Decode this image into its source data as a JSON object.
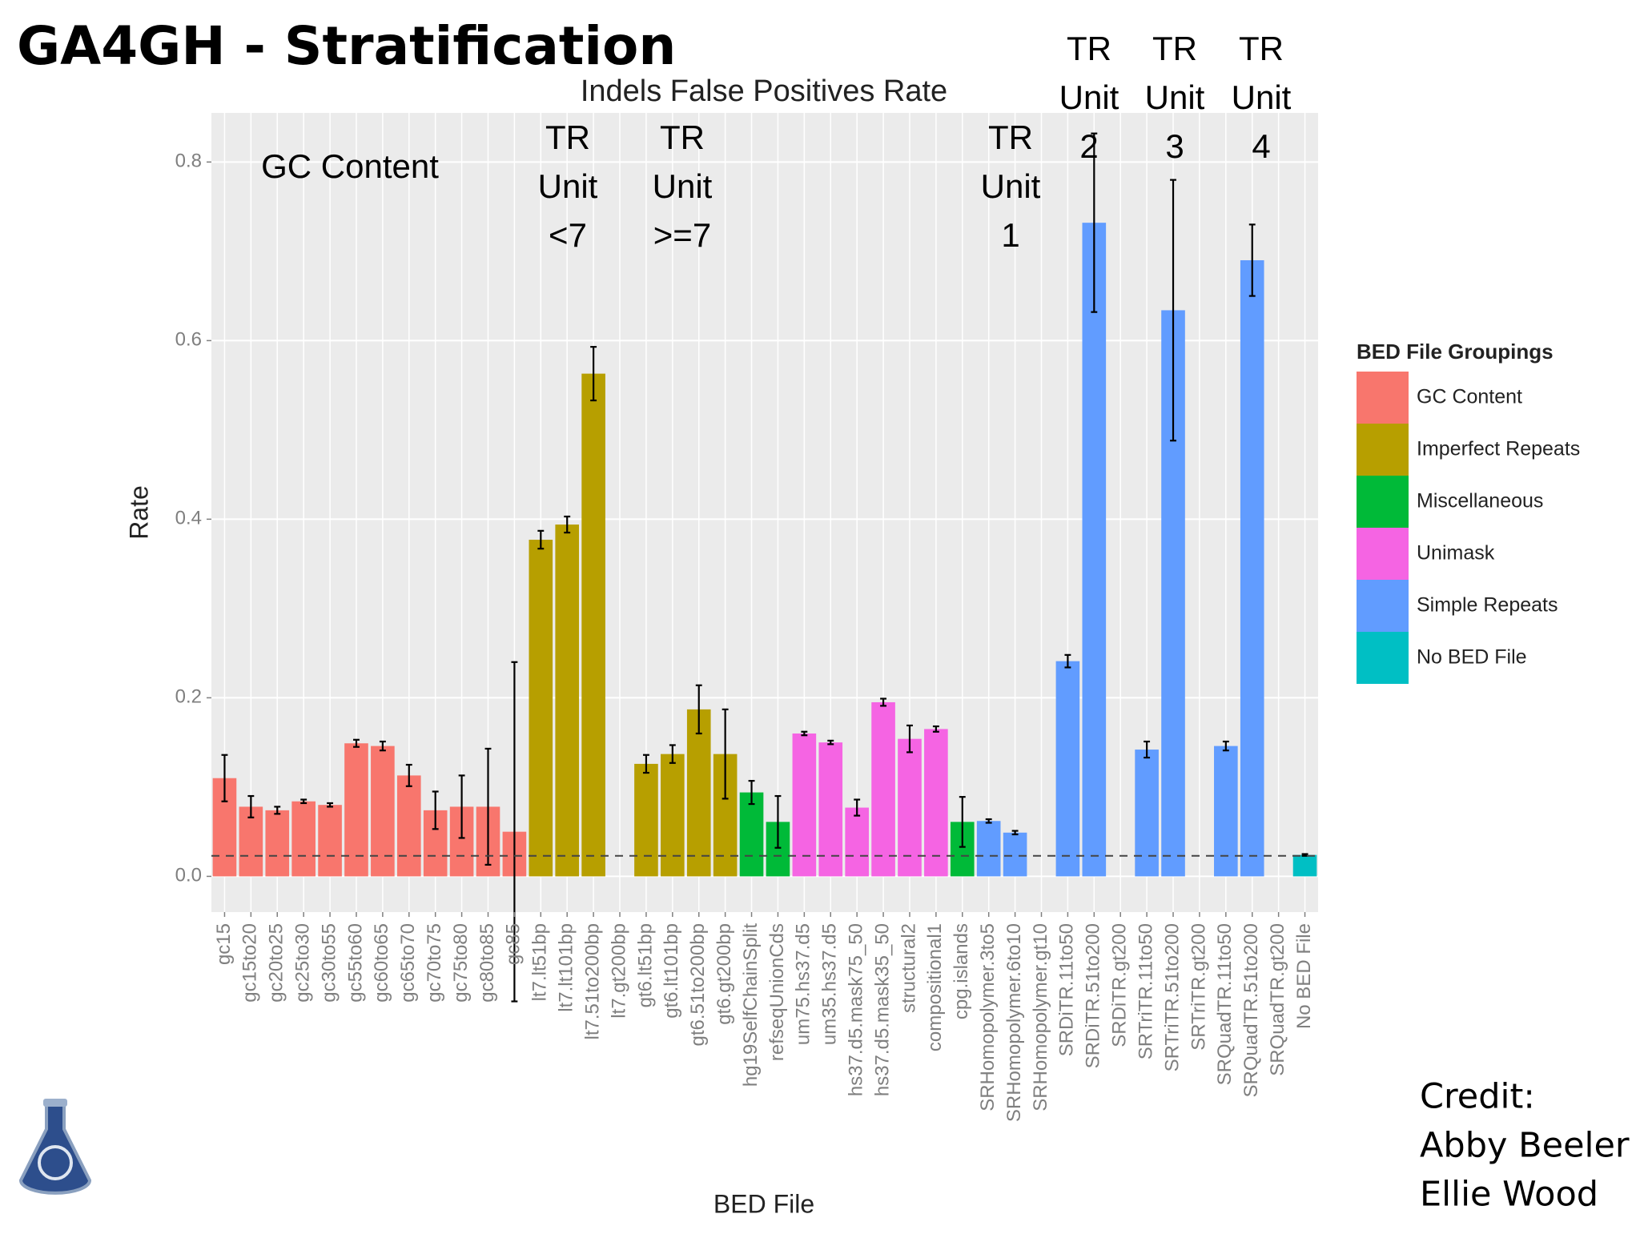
{
  "slide": {
    "title": "GA4GH - Stratification",
    "credit": [
      "Credit:",
      "Abby Beeler",
      "Ellie Wood"
    ]
  },
  "chart_data": {
    "type": "bar",
    "title": "Indels False Positives Rate",
    "x_label": "BED File",
    "y_label": "Rate",
    "categories": [
      "gc15",
      "gc15to20",
      "gc20to25",
      "gc25to30",
      "gc30to55",
      "gc55to60",
      "gc60to65",
      "gc65to70",
      "gc70to75",
      "gc75to80",
      "gc80to85",
      "gc85",
      "lt7.lt51bp",
      "lt7.lt101bp",
      "lt7.51to200bp",
      "lt7.gt200bp",
      "gt6.lt51bp",
      "gt6.lt101bp",
      "gt6.51to200bp",
      "gt6.gt200bp",
      "hg19SelfChainSplit",
      "refseqUnionCds",
      "um75.hs37.d5",
      "um35.hs37.d5",
      "hs37.d5.mask75_50",
      "hs37.d5.mask35_50",
      "structural2",
      "compositional1",
      "cpg.islands",
      "SRHomopolymer.3to5",
      "SRHomopolymer.6to10",
      "SRHomopolymer.gt10",
      "SRDiTR.11to50",
      "SRDiTR.51to200",
      "SRDiTR.gt200",
      "SRTriTR.11to50",
      "SRTriTR.51to200",
      "SRTriTR.gt200",
      "SRQuadTR.11to50",
      "SRQuadTR.51to200",
      "SRQuadTR.gt200",
      "No BED File"
    ],
    "values": [
      0.11,
      0.078,
      0.074,
      0.084,
      0.08,
      0.149,
      0.146,
      0.113,
      0.074,
      0.078,
      0.078,
      0.05,
      0.377,
      0.394,
      0.563,
      null,
      0.126,
      0.137,
      0.187,
      0.137,
      0.094,
      0.061,
      0.16,
      0.15,
      0.077,
      0.195,
      0.154,
      0.165,
      0.061,
      0.062,
      0.049,
      null,
      0.241,
      0.732,
      null,
      0.142,
      0.634,
      null,
      0.146,
      0.69,
      null,
      0.024
    ],
    "errors": [
      0.026,
      0.012,
      0.004,
      0.002,
      0.002,
      0.004,
      0.005,
      0.012,
      0.021,
      0.035,
      0.065,
      0.19,
      0.01,
      0.009,
      0.03,
      null,
      0.01,
      0.01,
      0.027,
      0.05,
      0.013,
      0.029,
      0.002,
      0.002,
      0.009,
      0.004,
      0.015,
      0.003,
      0.028,
      0.002,
      0.002,
      null,
      0.007,
      0.1,
      null,
      0.009,
      0.146,
      null,
      0.005,
      0.04,
      null,
      0.001
    ],
    "colors": [
      "#f8766d",
      "#f8766d",
      "#f8766d",
      "#f8766d",
      "#f8766d",
      "#f8766d",
      "#f8766d",
      "#f8766d",
      "#f8766d",
      "#f8766d",
      "#f8766d",
      "#f8766d",
      "#b79f00",
      "#b79f00",
      "#b79f00",
      "#b79f00",
      "#b79f00",
      "#b79f00",
      "#b79f00",
      "#b79f00",
      "#00ba38",
      "#00ba38",
      "#f564e3",
      "#f564e3",
      "#f564e3",
      "#f564e3",
      "#f564e3",
      "#f564e3",
      "#00ba38",
      "#619cff",
      "#619cff",
      "#619cff",
      "#619cff",
      "#619cff",
      "#619cff",
      "#619cff",
      "#619cff",
      "#619cff",
      "#619cff",
      "#619cff",
      "#619cff",
      "#00bfc4"
    ],
    "legend_title": "BED File Groupings",
    "legend": [
      {
        "name": "GC Content",
        "color": "#f8766d"
      },
      {
        "name": "Imperfect Repeats",
        "color": "#b79f00"
      },
      {
        "name": "Miscellaneous",
        "color": "#00ba38"
      },
      {
        "name": "Unimask",
        "color": "#f564e3"
      },
      {
        "name": "Simple Repeats",
        "color": "#619cff"
      },
      {
        "name": "No BED File",
        "color": "#00bfc4"
      }
    ],
    "legend_position": "right",
    "reference_line": 0.023,
    "ylim": [
      -0.04,
      0.855
    ],
    "yticks": [
      {
        "value": 0,
        "label": "0.0"
      },
      0.2,
      0.4,
      0.6,
      0.8
    ],
    "grid": true,
    "annotations": [
      [
        "GC Content"
      ],
      [
        "TR",
        "Unit",
        "<7"
      ],
      [
        "TR",
        "Unit",
        ">=7"
      ],
      [
        "TR",
        "Unit",
        "1"
      ],
      [
        "TR",
        "Unit",
        "2"
      ],
      [
        "TR",
        "Unit",
        "3"
      ],
      [
        "TR",
        "Unit",
        "4"
      ]
    ]
  }
}
